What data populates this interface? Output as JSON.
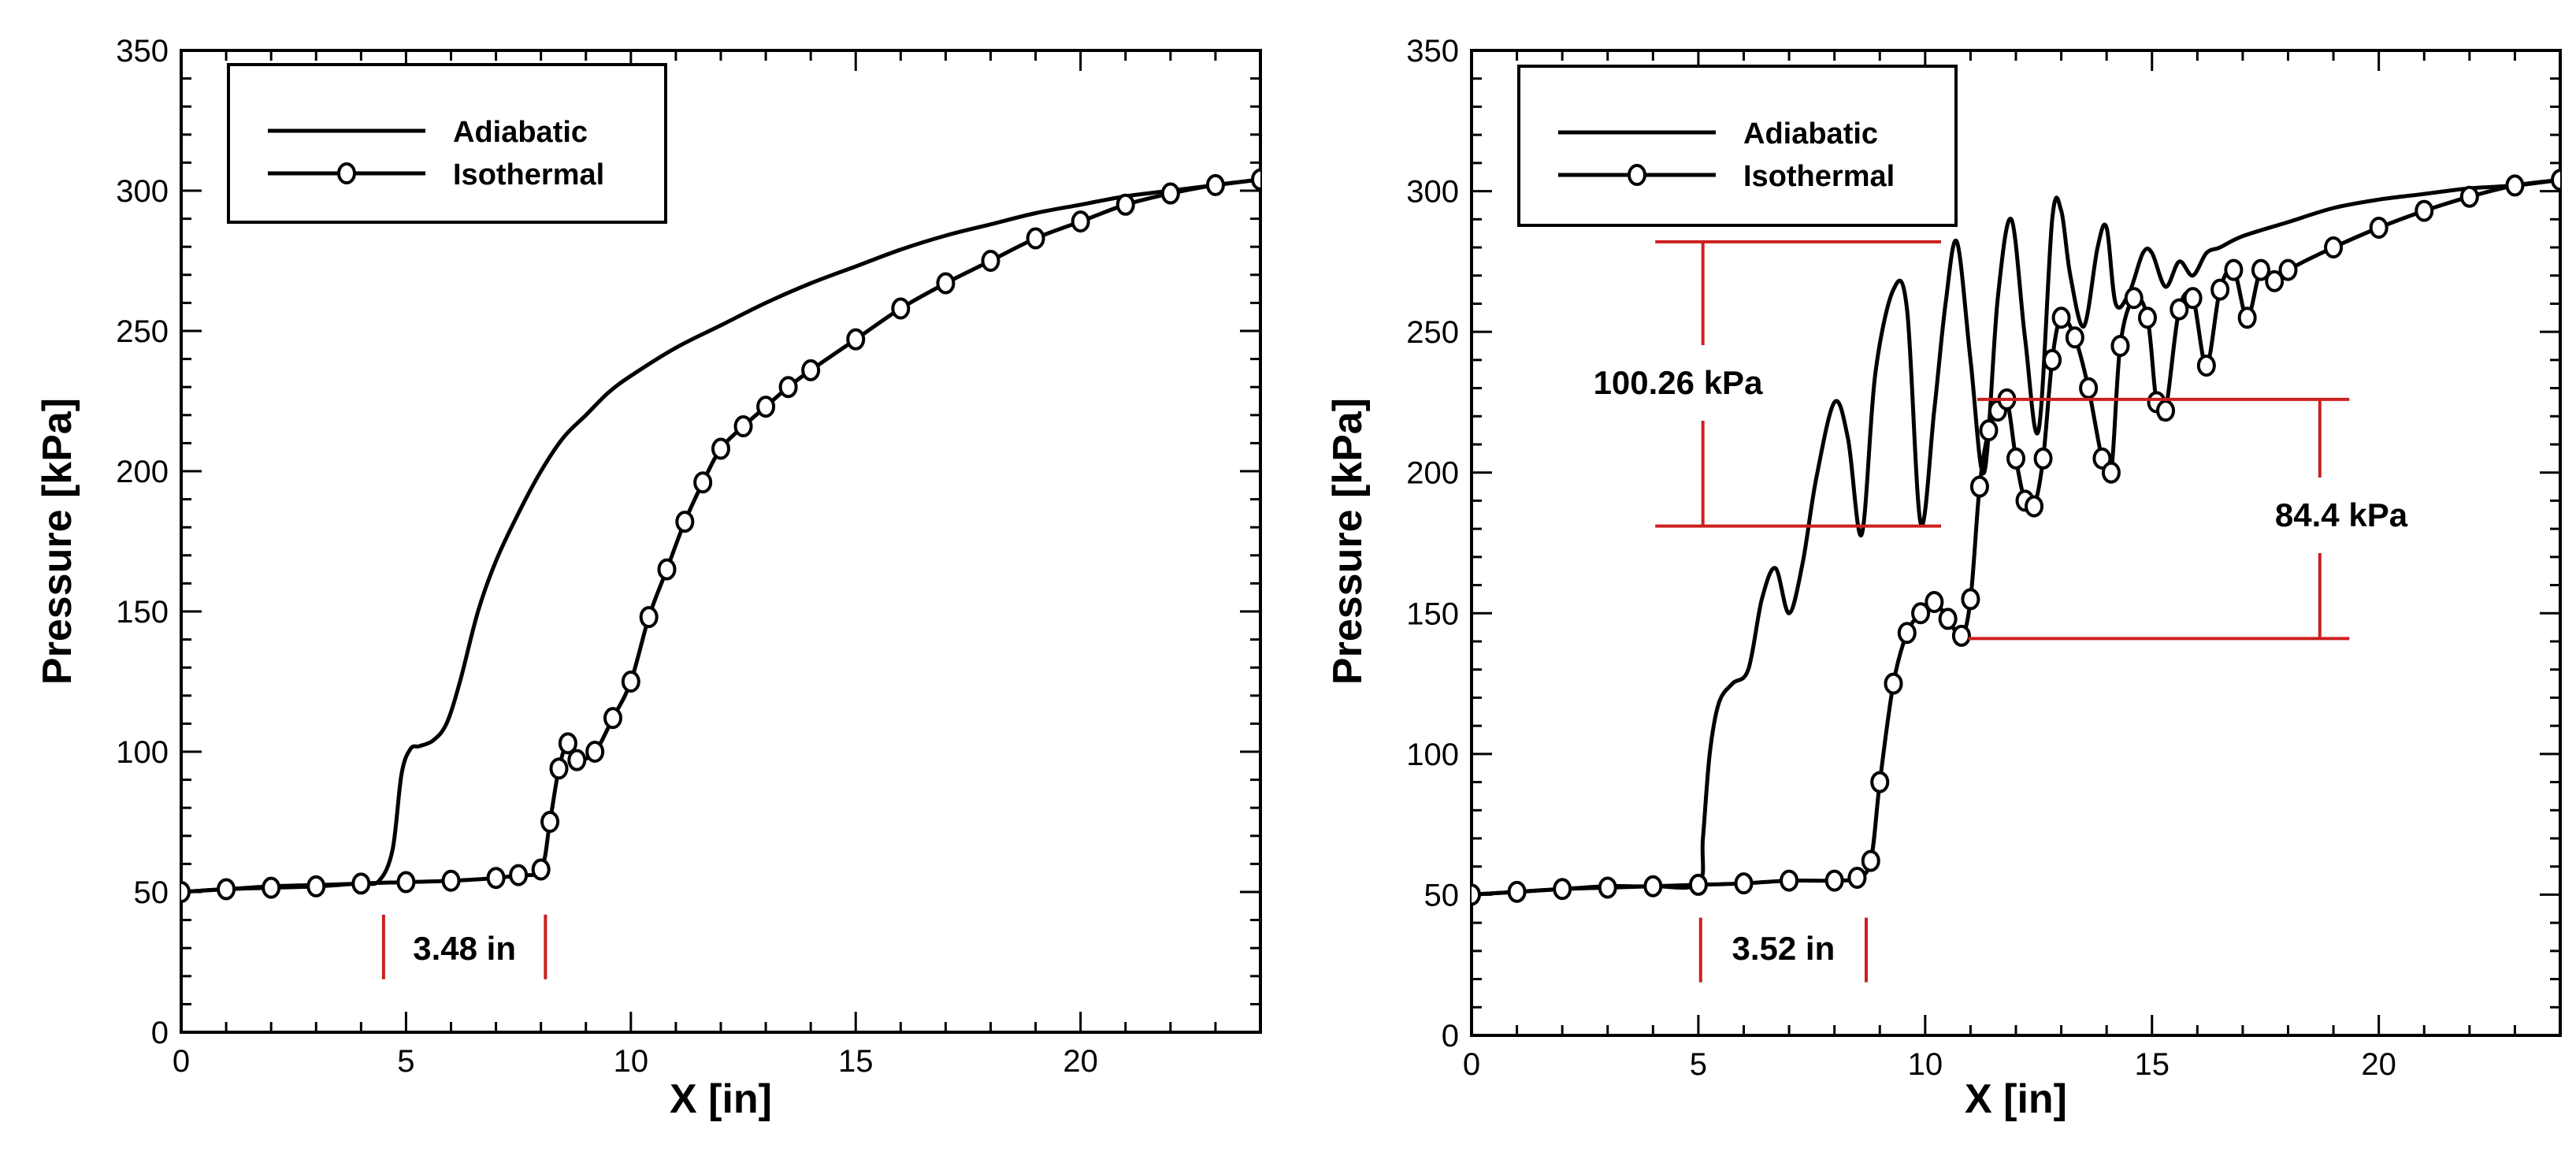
{
  "chart_data": [
    {
      "type": "line",
      "title": "",
      "xlabel": "X [in]",
      "ylabel": "Pressure [kPa]",
      "xlim": [
        0,
        24
      ],
      "ylim": [
        0,
        350
      ],
      "xticks": [
        "0",
        "5",
        "10",
        "15",
        "20"
      ],
      "yticks": [
        "0",
        "50",
        "100",
        "150",
        "200",
        "250",
        "300",
        "350"
      ],
      "legend": {
        "position": "top-left",
        "entries": [
          "Adiabatic",
          "Isothermal"
        ]
      },
      "series": [
        {
          "name": "Adiabatic",
          "marker": "none",
          "x": [
            0,
            1,
            2,
            3,
            4,
            4.4,
            4.7,
            4.9,
            5.1,
            5.3,
            5.6,
            5.9,
            6.2,
            6.6,
            7.0,
            7.5,
            8.0,
            8.5,
            9.0,
            9.5,
            10.0,
            11.0,
            12.0,
            13.0,
            14.0,
            15.0,
            16.0,
            17.0,
            18.0,
            19.0,
            20.0,
            21.0,
            22.0,
            23.0,
            24.0
          ],
          "y": [
            50,
            51,
            52,
            52.5,
            53,
            54,
            65,
            92,
            101,
            102,
            104,
            110,
            125,
            150,
            168,
            185,
            200,
            212,
            220,
            228,
            234,
            244,
            252,
            260,
            267,
            273,
            279,
            284,
            288,
            292,
            295,
            298,
            300,
            302,
            304
          ]
        },
        {
          "name": "Isothermal",
          "marker": "circle",
          "x": [
            0,
            1,
            2,
            3,
            4,
            5,
            6,
            7,
            7.5,
            8.0,
            8.2,
            8.4,
            8.6,
            8.8,
            9.2,
            9.6,
            10.0,
            10.4,
            10.8,
            11.2,
            11.6,
            12.0,
            12.5,
            13.0,
            13.5,
            14.0,
            15.0,
            16.0,
            17.0,
            18.0,
            19.0,
            20.0,
            21.0,
            22.0,
            23.0,
            24.0
          ],
          "y": [
            50,
            51,
            51.5,
            52,
            53,
            53.5,
            54,
            55,
            56,
            58,
            75,
            94,
            103,
            97,
            100,
            112,
            125,
            148,
            165,
            182,
            196,
            208,
            216,
            223,
            230,
            236,
            247,
            258,
            267,
            275,
            283,
            289,
            295,
            299,
            302,
            304
          ]
        }
      ],
      "annotations": [
        {
          "label": "3.48 in",
          "kind": "horizontal-span",
          "x_start": 4.5,
          "x_end": 8.1,
          "y": 20
        }
      ]
    },
    {
      "type": "line",
      "title": "",
      "xlabel": "X [in]",
      "ylabel": "Pressure [kPa]",
      "xlim": [
        0,
        24
      ],
      "ylim": [
        0,
        350
      ],
      "xticks": [
        "0",
        "5",
        "10",
        "15",
        "20"
      ],
      "yticks": [
        "0",
        "50",
        "100",
        "150",
        "200",
        "250",
        "300",
        "350"
      ],
      "legend": {
        "position": "top-left",
        "entries": [
          "Adiabatic",
          "Isothermal"
        ]
      },
      "series": [
        {
          "name": "Adiabatic",
          "marker": "none",
          "x": [
            0,
            1,
            2,
            3,
            4,
            5.0,
            5.1,
            5.25,
            5.45,
            5.75,
            6.1,
            6.4,
            6.7,
            7.0,
            7.3,
            7.6,
            8.0,
            8.3,
            8.6,
            8.9,
            9.3,
            9.6,
            9.9,
            10.2,
            10.45,
            10.7,
            11.0,
            11.3,
            11.6,
            11.9,
            12.2,
            12.5,
            12.8,
            13.0,
            13.2,
            13.5,
            13.8,
            14.0,
            14.2,
            14.5,
            14.8,
            15.0,
            15.3,
            15.6,
            15.9,
            16.2,
            16.5,
            17.0,
            18.0,
            19.0,
            20.0,
            21.0,
            22.0,
            23.0,
            24.0
          ],
          "y": [
            50,
            51,
            52,
            53,
            53,
            54,
            70,
            100,
            118,
            125,
            130,
            155,
            166,
            150,
            168,
            198,
            225,
            212,
            178,
            235,
            265,
            258,
            182,
            222,
            260,
            282,
            240,
            200,
            262,
            290,
            248,
            215,
            290,
            293,
            270,
            252,
            280,
            287,
            260,
            264,
            278,
            278,
            266,
            275,
            270,
            278,
            280,
            284,
            289,
            294,
            297,
            299,
            301,
            302,
            304
          ]
        },
        {
          "name": "Isothermal",
          "marker": "circle",
          "x": [
            0,
            1,
            2,
            3,
            4,
            5,
            6,
            7,
            8,
            8.5,
            8.8,
            9.0,
            9.3,
            9.6,
            9.9,
            10.2,
            10.5,
            10.8,
            11.0,
            11.2,
            11.4,
            11.6,
            11.8,
            12.0,
            12.2,
            12.4,
            12.6,
            12.8,
            13.0,
            13.3,
            13.6,
            13.9,
            14.1,
            14.3,
            14.6,
            14.9,
            15.1,
            15.3,
            15.6,
            15.9,
            16.2,
            16.5,
            16.8,
            17.1,
            17.4,
            17.7,
            18.0,
            19.0,
            20.0,
            21.0,
            22.0,
            23.0,
            24.0
          ],
          "y": [
            50,
            51,
            52,
            52.5,
            53,
            53.5,
            54,
            55,
            55,
            56,
            62,
            90,
            125,
            143,
            150,
            154,
            148,
            142,
            155,
            195,
            215,
            222,
            226,
            205,
            190,
            188,
            205,
            240,
            255,
            248,
            230,
            205,
            200,
            245,
            262,
            255,
            225,
            222,
            258,
            262,
            238,
            265,
            272,
            255,
            272,
            268,
            272,
            280,
            287,
            293,
            298,
            302,
            304
          ]
        }
      ],
      "annotations": [
        {
          "label": "3.52 in",
          "kind": "horizontal-span",
          "x_start": 5.05,
          "x_end": 8.7,
          "y": 20
        },
        {
          "label": "100.26 kPa",
          "kind": "vertical-span",
          "y_low": 181,
          "y_high": 282,
          "x": 5.1
        },
        {
          "label": "84.4 kPa",
          "kind": "vertical-span",
          "y_low": 141,
          "y_high": 226,
          "x": 18.7
        }
      ]
    }
  ]
}
